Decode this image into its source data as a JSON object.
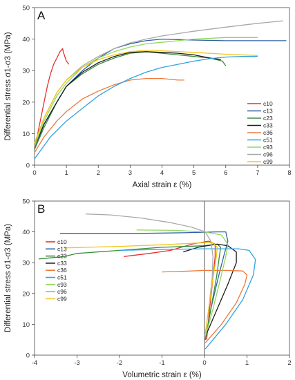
{
  "chart_data": [
    {
      "panel_label": "A",
      "type": "line",
      "xlabel": "Axial strain ε (%)",
      "ylabel": "Differential stress σ1-σ3 (MPa)",
      "xlim": [
        0,
        8
      ],
      "ylim": [
        0,
        50
      ],
      "xticks": [
        "0",
        "1",
        "2",
        "3",
        "4",
        "5",
        "6",
        "7",
        "8"
      ],
      "yticks": [
        "0",
        "10",
        "20",
        "30",
        "40",
        "50"
      ],
      "legend_position": "bottom-right",
      "series": [
        {
          "name": "c10",
          "color": "#e8302a",
          "points": [
            [
              0,
              5
            ],
            [
              0.1,
              10
            ],
            [
              0.2,
              15
            ],
            [
              0.3,
              20
            ],
            [
              0.4,
              25
            ],
            [
              0.5,
              29
            ],
            [
              0.6,
              32
            ],
            [
              0.7,
              34
            ],
            [
              0.8,
              36
            ],
            [
              0.88,
              37
            ],
            [
              0.9,
              36
            ],
            [
              1.0,
              33
            ],
            [
              1.08,
              32
            ]
          ]
        },
        {
          "name": "c13",
          "color": "#2e5fa8",
          "points": [
            [
              0,
              5
            ],
            [
              0.3,
              13
            ],
            [
              0.7,
              20
            ],
            [
              1.0,
              25
            ],
            [
              1.5,
              30
            ],
            [
              2.0,
              34
            ],
            [
              2.5,
              37
            ],
            [
              3.0,
              38.5
            ],
            [
              3.5,
              39.5
            ],
            [
              4.0,
              40
            ],
            [
              5.0,
              39.7
            ],
            [
              6.0,
              39.5
            ],
            [
              7.0,
              39.5
            ],
            [
              7.9,
              39.5
            ]
          ]
        },
        {
          "name": "c23",
          "color": "#3c8a3c",
          "points": [
            [
              0,
              5
            ],
            [
              0.3,
              12
            ],
            [
              0.7,
              20
            ],
            [
              1.0,
              25
            ],
            [
              1.5,
              29
            ],
            [
              2.0,
              32
            ],
            [
              2.5,
              34
            ],
            [
              3.0,
              35.5
            ],
            [
              3.5,
              36
            ],
            [
              4.0,
              35.5
            ],
            [
              4.5,
              35
            ],
            [
              5.0,
              34.5
            ],
            [
              5.5,
              34
            ],
            [
              5.9,
              33
            ],
            [
              6.0,
              31.5
            ]
          ]
        },
        {
          "name": "c33",
          "color": "#1a1a1a",
          "points": [
            [
              0,
              6
            ],
            [
              0.3,
              13
            ],
            [
              0.7,
              20
            ],
            [
              1.0,
              25
            ],
            [
              1.5,
              29.5
            ],
            [
              2.0,
              32.5
            ],
            [
              2.5,
              34.5
            ],
            [
              3.0,
              35.8
            ],
            [
              3.5,
              36
            ],
            [
              4.0,
              35.8
            ],
            [
              4.5,
              35.5
            ],
            [
              5.0,
              35
            ],
            [
              5.5,
              34
            ],
            [
              5.85,
              33.5
            ]
          ]
        },
        {
          "name": "c36",
          "color": "#f07838",
          "points": [
            [
              0,
              4
            ],
            [
              0.3,
              9
            ],
            [
              0.7,
              14
            ],
            [
              1.0,
              17
            ],
            [
              1.5,
              21
            ],
            [
              2.0,
              23.5
            ],
            [
              2.5,
              25.5
            ],
            [
              3.0,
              27
            ],
            [
              3.5,
              27.5
            ],
            [
              4.0,
              27.5
            ],
            [
              4.5,
              27
            ],
            [
              4.7,
              27
            ]
          ]
        },
        {
          "name": "c51",
          "color": "#2ea3dd",
          "points": [
            [
              0,
              2
            ],
            [
              0.5,
              9
            ],
            [
              1.0,
              14
            ],
            [
              1.5,
              18
            ],
            [
              2.0,
              22
            ],
            [
              2.5,
              25
            ],
            [
              3.0,
              27.5
            ],
            [
              3.5,
              29.5
            ],
            [
              4.0,
              31
            ],
            [
              4.5,
              32
            ],
            [
              5.0,
              33
            ],
            [
              5.5,
              33.8
            ],
            [
              6.0,
              34.3
            ],
            [
              6.5,
              34.5
            ],
            [
              7.0,
              34.5
            ]
          ]
        },
        {
          "name": "c93",
          "color": "#8ed85c",
          "points": [
            [
              0,
              6
            ],
            [
              0.3,
              14
            ],
            [
              0.7,
              22
            ],
            [
              1.0,
              26
            ],
            [
              1.5,
              31
            ],
            [
              2.0,
              34
            ],
            [
              2.5,
              36
            ],
            [
              3.0,
              37.5
            ],
            [
              3.5,
              38.5
            ],
            [
              4.0,
              39
            ],
            [
              5.0,
              40
            ],
            [
              6.0,
              40.5
            ],
            [
              7.0,
              40.5
            ]
          ]
        },
        {
          "name": "c96",
          "color": "#a8a8a8",
          "points": [
            [
              0,
              7
            ],
            [
              0.3,
              15
            ],
            [
              0.7,
              23
            ],
            [
              1.0,
              27
            ],
            [
              1.5,
              31.5
            ],
            [
              2.0,
              34.5
            ],
            [
              2.5,
              37
            ],
            [
              3.0,
              38.8
            ],
            [
              3.5,
              40
            ],
            [
              4.0,
              41
            ],
            [
              5.0,
              42.5
            ],
            [
              6.0,
              43.8
            ],
            [
              7.0,
              45
            ],
            [
              7.8,
              45.8
            ]
          ]
        },
        {
          "name": "c99",
          "color": "#f2c618",
          "points": [
            [
              0,
              7
            ],
            [
              0.3,
              15
            ],
            [
              0.7,
              23
            ],
            [
              1.0,
              27
            ],
            [
              1.5,
              31
            ],
            [
              2.0,
              33.5
            ],
            [
              2.5,
              35
            ],
            [
              3.0,
              36
            ],
            [
              3.5,
              36.5
            ],
            [
              4.0,
              36.3
            ],
            [
              5.0,
              35.8
            ],
            [
              6.0,
              35.2
            ],
            [
              7.0,
              34.8
            ]
          ]
        }
      ]
    },
    {
      "panel_label": "B",
      "type": "line",
      "xlabel": "Volumetric strain ε (%)",
      "ylabel": "Differential stress σ1-σ3 (MPa)",
      "xlim": [
        -4,
        2
      ],
      "ylim": [
        0,
        50
      ],
      "xticks": [
        "-4",
        "-3",
        "-2",
        "-1",
        "0",
        "1",
        "2"
      ],
      "yticks": [
        "0",
        "10",
        "20",
        "30",
        "40",
        "50"
      ],
      "legend_position": "bottom-left",
      "series": [
        {
          "name": "c10",
          "color": "#e8302a",
          "points": [
            [
              0.05,
              5
            ],
            [
              0.12,
              15
            ],
            [
              0.2,
              25
            ],
            [
              0.25,
              32
            ],
            [
              0.25,
              36
            ],
            [
              0.1,
              37
            ],
            [
              -0.3,
              36
            ],
            [
              -0.8,
              34
            ],
            [
              -1.3,
              33
            ],
            [
              -1.9,
              32
            ]
          ]
        },
        {
          "name": "c13",
          "color": "#2e5fa8",
          "points": [
            [
              0.02,
              5
            ],
            [
              0.15,
              15
            ],
            [
              0.32,
              25
            ],
            [
              0.45,
              32
            ],
            [
              0.55,
              37
            ],
            [
              0.5,
              40
            ],
            [
              0.3,
              40
            ],
            [
              -0.5,
              39.7
            ],
            [
              -1.5,
              39.5
            ],
            [
              -2.5,
              39.5
            ],
            [
              -3.4,
              39.5
            ]
          ]
        },
        {
          "name": "c23",
          "color": "#3c8a3c",
          "points": [
            [
              0.02,
              5
            ],
            [
              0.15,
              15
            ],
            [
              0.28,
              25
            ],
            [
              0.35,
              32
            ],
            [
              0.38,
              35
            ],
            [
              0.3,
              36
            ],
            [
              0,
              35.5
            ],
            [
              -1.0,
              35
            ],
            [
              -2.0,
              34
            ],
            [
              -3.0,
              33
            ],
            [
              -3.3,
              32
            ],
            [
              -3.9,
              31.2
            ]
          ]
        },
        {
          "name": "c33",
          "color": "#1a1a1a",
          "points": [
            [
              0.02,
              6
            ],
            [
              0.3,
              15
            ],
            [
              0.55,
              23
            ],
            [
              0.75,
              30
            ],
            [
              0.75,
              33.5
            ],
            [
              0.55,
              35.5
            ],
            [
              0.3,
              36
            ],
            [
              0.05,
              35.5
            ],
            [
              -0.15,
              35
            ],
            [
              -0.5,
              33.5
            ]
          ]
        },
        {
          "name": "c36",
          "color": "#f07838",
          "points": [
            [
              0.02,
              4
            ],
            [
              0.4,
              10
            ],
            [
              0.75,
              17
            ],
            [
              0.95,
              23
            ],
            [
              1.0,
              26
            ],
            [
              0.9,
              27.3
            ],
            [
              0.5,
              27.5
            ],
            [
              0,
              27.5
            ],
            [
              -0.5,
              27.2
            ],
            [
              -1.0,
              27
            ]
          ]
        },
        {
          "name": "c51",
          "color": "#2ea3dd",
          "points": [
            [
              0.02,
              2
            ],
            [
              0.5,
              10
            ],
            [
              0.9,
              18
            ],
            [
              1.15,
              26
            ],
            [
              1.2,
              31
            ],
            [
              1.05,
              34
            ],
            [
              0.8,
              34.5
            ],
            [
              0,
              34.5
            ],
            [
              -1.0,
              34.3
            ],
            [
              -2.0,
              34
            ]
          ]
        },
        {
          "name": "c93",
          "color": "#8ed85c",
          "points": [
            [
              0.02,
              6
            ],
            [
              0.2,
              15
            ],
            [
              0.38,
              25
            ],
            [
              0.5,
              32
            ],
            [
              0.55,
              36
            ],
            [
              0.4,
              39
            ],
            [
              0,
              40
            ],
            [
              -0.7,
              40.5
            ],
            [
              -1.6,
              40.6
            ]
          ]
        },
        {
          "name": "c96",
          "color": "#a8a8a8",
          "points": [
            [
              0.02,
              7
            ],
            [
              0.1,
              15
            ],
            [
              0.18,
              25
            ],
            [
              0.2,
              32
            ],
            [
              0.15,
              37
            ],
            [
              0.02,
              40
            ],
            [
              -0.3,
              41.5
            ],
            [
              -0.8,
              43
            ],
            [
              -1.5,
              44.5
            ],
            [
              -2.2,
              45.5
            ],
            [
              -2.8,
              45.8
            ]
          ]
        },
        {
          "name": "c99",
          "color": "#f2c618",
          "points": [
            [
              0.02,
              7
            ],
            [
              0.1,
              15
            ],
            [
              0.2,
              25
            ],
            [
              0.28,
              32
            ],
            [
              0.3,
              35
            ],
            [
              0.2,
              36.5
            ],
            [
              0,
              36.5
            ],
            [
              -1.0,
              35.8
            ],
            [
              -2.0,
              35.3
            ],
            [
              -3.3,
              34.8
            ]
          ]
        }
      ]
    }
  ]
}
